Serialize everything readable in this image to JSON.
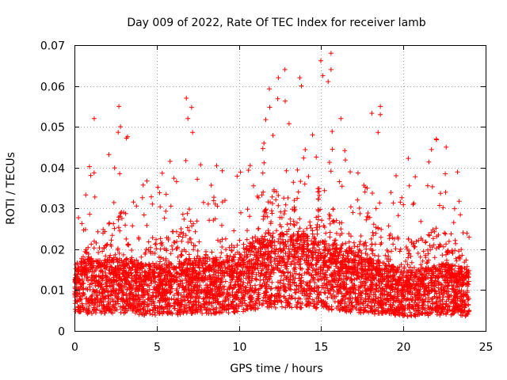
{
  "chart_data": {
    "type": "scatter",
    "title": "Day 009 of 2022, Rate Of TEC Index for receiver lamb",
    "xlabel": "GPS time / hours",
    "ylabel": "ROTI / TECUs",
    "xlim": [
      0,
      25
    ],
    "ylim": [
      0,
      0.07
    ],
    "x_ticks": [
      0,
      5,
      10,
      15,
      20,
      25
    ],
    "y_ticks": [
      0,
      0.01,
      0.02,
      0.03,
      0.04,
      0.05,
      0.06,
      0.07
    ],
    "x_tick_labels": [
      "0",
      "5",
      "10",
      "15",
      "20",
      "25"
    ],
    "y_tick_labels": [
      "0",
      "0.01",
      "0.02",
      "0.03",
      "0.04",
      "0.05",
      "0.06",
      "0.07"
    ],
    "grid": true,
    "marker": "+",
    "color": "#ff0000",
    "baseline_profile": {
      "x": [
        0,
        1,
        2,
        3,
        4,
        5,
        6,
        7,
        8,
        9,
        10,
        11,
        12,
        13,
        14,
        15,
        16,
        17,
        18,
        19,
        20,
        21,
        22,
        23,
        24
      ],
      "median": [
        0.011,
        0.012,
        0.012,
        0.012,
        0.011,
        0.011,
        0.011,
        0.012,
        0.012,
        0.012,
        0.013,
        0.015,
        0.016,
        0.016,
        0.016,
        0.015,
        0.014,
        0.013,
        0.012,
        0.011,
        0.01,
        0.01,
        0.011,
        0.011,
        0.01
      ],
      "upper_envelope": [
        0.025,
        0.042,
        0.048,
        0.055,
        0.04,
        0.04,
        0.046,
        0.057,
        0.04,
        0.041,
        0.043,
        0.042,
        0.064,
        0.062,
        0.045,
        0.068,
        0.052,
        0.04,
        0.055,
        0.043,
        0.044,
        0.04,
        0.047,
        0.045,
        0.03
      ]
    },
    "notable_points": [
      {
        "x": 1.2,
        "y": 0.052
      },
      {
        "x": 2.7,
        "y": 0.055
      },
      {
        "x": 2.8,
        "y": 0.05
      },
      {
        "x": 6.8,
        "y": 0.057
      },
      {
        "x": 6.9,
        "y": 0.052
      },
      {
        "x": 12.4,
        "y": 0.062
      },
      {
        "x": 12.8,
        "y": 0.064
      },
      {
        "x": 13.7,
        "y": 0.062
      },
      {
        "x": 13.8,
        "y": 0.06
      },
      {
        "x": 15.6,
        "y": 0.068
      },
      {
        "x": 15.6,
        "y": 0.064
      },
      {
        "x": 16.2,
        "y": 0.052
      },
      {
        "x": 18.6,
        "y": 0.055
      },
      {
        "x": 18.6,
        "y": 0.053
      },
      {
        "x": 22.0,
        "y": 0.047
      },
      {
        "x": 22.6,
        "y": 0.045
      }
    ],
    "point_count": 5200
  }
}
